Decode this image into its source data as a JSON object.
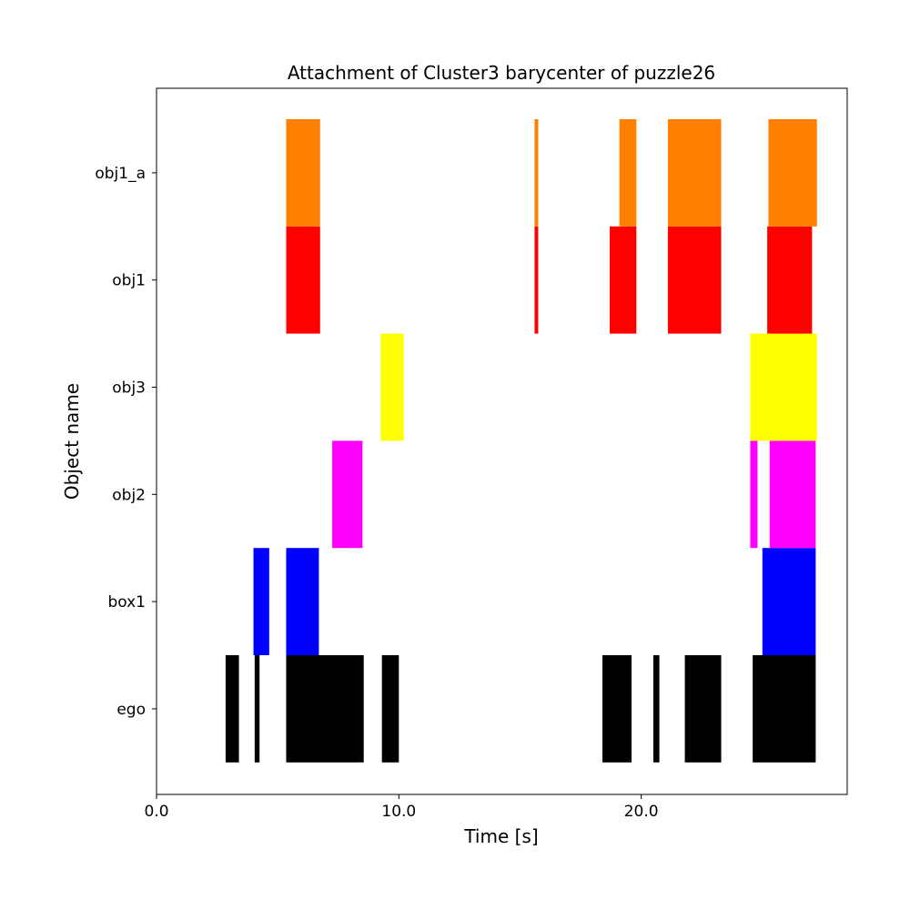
{
  "chart_data": {
    "type": "timeline",
    "title": "Attachment of Cluster3 barycenter of puzzle26",
    "xlabel": "Time [s]",
    "ylabel": "Object name",
    "xlim": [
      0.0,
      28.5
    ],
    "xticks": [
      0.0,
      10.0,
      20.0
    ],
    "xtick_labels": [
      "0.0",
      "10.0",
      "20.0"
    ],
    "grid": false,
    "categories": [
      "ego",
      "box1",
      "obj2",
      "obj3",
      "obj1",
      "obj1_a"
    ],
    "series": [
      {
        "category": "ego",
        "color": "#000000",
        "intervals": [
          [
            2.85,
            3.4
          ],
          [
            4.05,
            4.25
          ],
          [
            5.35,
            8.55
          ],
          [
            9.3,
            10.0
          ],
          [
            18.4,
            19.6
          ],
          [
            20.5,
            20.75
          ],
          [
            21.8,
            23.3
          ],
          [
            24.6,
            27.2
          ]
        ]
      },
      {
        "category": "box1",
        "color": "#0000ff",
        "intervals": [
          [
            4.0,
            4.65
          ],
          [
            5.35,
            6.7
          ],
          [
            25.0,
            27.2
          ]
        ]
      },
      {
        "category": "obj2",
        "color": "#ff00ff",
        "intervals": [
          [
            7.25,
            8.5
          ],
          [
            24.5,
            24.8
          ],
          [
            25.3,
            27.2
          ]
        ]
      },
      {
        "category": "obj3",
        "color": "#ffff00",
        "intervals": [
          [
            9.25,
            10.2
          ],
          [
            24.5,
            27.25
          ]
        ]
      },
      {
        "category": "obj1",
        "color": "#ff0000",
        "intervals": [
          [
            5.35,
            6.75
          ],
          [
            15.6,
            15.75
          ],
          [
            18.7,
            19.8
          ],
          [
            21.1,
            23.3
          ],
          [
            25.2,
            27.05
          ]
        ]
      },
      {
        "category": "obj1_a",
        "color": "#ff7f00",
        "intervals": [
          [
            5.35,
            6.75
          ],
          [
            15.6,
            15.75
          ],
          [
            19.1,
            19.8
          ],
          [
            21.1,
            23.3
          ],
          [
            25.25,
            27.25
          ]
        ]
      }
    ]
  }
}
